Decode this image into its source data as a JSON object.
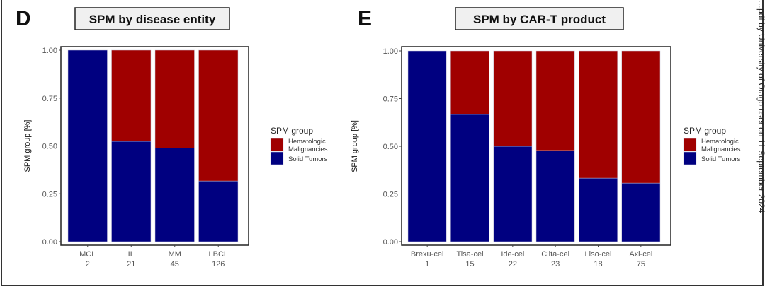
{
  "watermark": "…pdf by University of Otago user on 11 September 2024",
  "colors": {
    "hematologic": "#a00000",
    "solid": "#000080"
  },
  "chart_data": [
    {
      "type": "bar",
      "stacked": true,
      "panel": "D",
      "title": "SPM by disease entity",
      "ylabel": "SPM group [%]",
      "ylim": [
        0,
        1
      ],
      "yticks": [
        "0.00",
        "0.25",
        "0.50",
        "0.75",
        "1.00"
      ],
      "categories": [
        "MCL",
        "IL",
        "MM",
        "LBCL"
      ],
      "category_counts": [
        "2",
        "21",
        "45",
        "126"
      ],
      "legend_title": "SPM group",
      "legend_position": "right",
      "series": [
        {
          "name": "Solid Tumors",
          "values": [
            1.0,
            0.524,
            0.489,
            0.317
          ]
        },
        {
          "name": "Hematologic Malignancies",
          "values": [
            0.0,
            0.476,
            0.511,
            0.683
          ]
        }
      ]
    },
    {
      "type": "bar",
      "stacked": true,
      "panel": "E",
      "title": "SPM by CAR-T product",
      "ylabel": "SPM group [%]",
      "ylim": [
        0,
        1
      ],
      "yticks": [
        "0.00",
        "0.25",
        "0.50",
        "0.75",
        "1.00"
      ],
      "categories": [
        "Brexu-cel",
        "Tisa-cel",
        "Ide-cel",
        "Cilta-cel",
        "Liso-cel",
        "Axi-cel"
      ],
      "category_counts": [
        "1",
        "15",
        "22",
        "23",
        "18",
        "75"
      ],
      "legend_title": "SPM group",
      "legend_position": "right",
      "series": [
        {
          "name": "Solid Tumors",
          "values": [
            1.0,
            0.667,
            0.5,
            0.478,
            0.333,
            0.307
          ]
        },
        {
          "name": "Hematologic Malignancies",
          "values": [
            0.0,
            0.333,
            0.5,
            0.522,
            0.667,
            0.693
          ]
        }
      ]
    }
  ]
}
